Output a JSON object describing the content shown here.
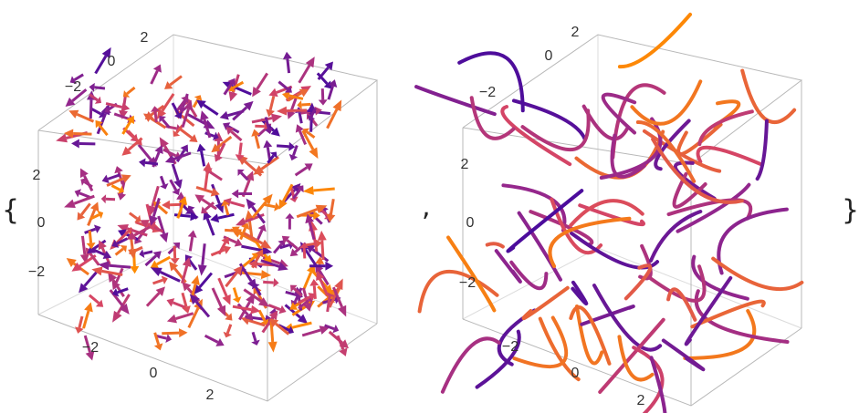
{
  "output": {
    "open": "{",
    "separator": ",",
    "close": "}"
  },
  "plots": [
    {
      "top_axis": [
        "2",
        "0",
        "−2"
      ],
      "vertical_axis": [
        "2",
        "0",
        "−2"
      ],
      "bottom_axis": [
        "−2",
        "0",
        "2"
      ]
    },
    {
      "top_axis": [
        "2",
        "0",
        "−2"
      ],
      "vertical_axis": [
        "2",
        "0",
        "−2"
      ],
      "bottom_axis": [
        "−2",
        "0",
        "2"
      ]
    }
  ]
}
